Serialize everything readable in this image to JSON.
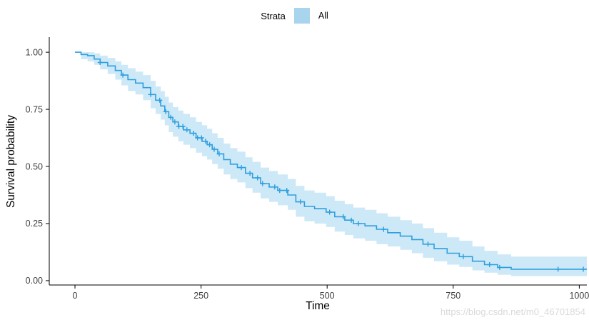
{
  "watermark": "https://blog.csdn.net/m0_46701854",
  "legend": {
    "title": "Strata",
    "items": [
      {
        "label": "All",
        "color": "#a9d4ee"
      }
    ]
  },
  "chart_data": {
    "type": "line",
    "subtype": "kaplan_meier_step",
    "title": "",
    "xlabel": "Time",
    "ylabel": "Survival probability",
    "xlim": [
      0,
      1015
    ],
    "ylim": [
      0,
      1
    ],
    "xticks": [
      0,
      250,
      500,
      750,
      1000
    ],
    "yticks": [
      0,
      0.25,
      0.5,
      0.75,
      1
    ],
    "grid": false,
    "legend_position": "top",
    "background": "#ffffff",
    "axis_color": "#000000",
    "tick_label_color": "#404040",
    "series": [
      {
        "name": "All",
        "color": "#2E9FDF",
        "ci_fill": "#2E9FDF",
        "ci_opacity": 0.24,
        "points": [
          [
            0,
            1.0,
            1.0,
            1.0
          ],
          [
            12,
            0.99,
            0.97,
            1.0
          ],
          [
            25,
            0.985,
            0.96,
            1.0
          ],
          [
            38,
            0.97,
            0.945,
            0.995
          ],
          [
            50,
            0.955,
            0.925,
            0.985
          ],
          [
            65,
            0.94,
            0.905,
            0.975
          ],
          [
            80,
            0.92,
            0.88,
            0.96
          ],
          [
            92,
            0.9,
            0.855,
            0.945
          ],
          [
            105,
            0.88,
            0.83,
            0.93
          ],
          [
            120,
            0.865,
            0.815,
            0.915
          ],
          [
            135,
            0.845,
            0.79,
            0.9
          ],
          [
            150,
            0.815,
            0.755,
            0.875
          ],
          [
            160,
            0.79,
            0.73,
            0.85
          ],
          [
            170,
            0.765,
            0.705,
            0.83
          ],
          [
            178,
            0.74,
            0.68,
            0.805
          ],
          [
            186,
            0.715,
            0.65,
            0.78
          ],
          [
            194,
            0.695,
            0.63,
            0.76
          ],
          [
            205,
            0.675,
            0.61,
            0.745
          ],
          [
            215,
            0.66,
            0.595,
            0.73
          ],
          [
            228,
            0.645,
            0.58,
            0.715
          ],
          [
            240,
            0.625,
            0.56,
            0.695
          ],
          [
            252,
            0.61,
            0.545,
            0.68
          ],
          [
            262,
            0.595,
            0.53,
            0.665
          ],
          [
            272,
            0.575,
            0.51,
            0.645
          ],
          [
            283,
            0.555,
            0.49,
            0.625
          ],
          [
            295,
            0.53,
            0.465,
            0.6
          ],
          [
            308,
            0.51,
            0.445,
            0.58
          ],
          [
            322,
            0.495,
            0.43,
            0.565
          ],
          [
            338,
            0.47,
            0.405,
            0.54
          ],
          [
            352,
            0.45,
            0.385,
            0.52
          ],
          [
            368,
            0.425,
            0.36,
            0.495
          ],
          [
            385,
            0.41,
            0.345,
            0.48
          ],
          [
            402,
            0.395,
            0.33,
            0.465
          ],
          [
            422,
            0.375,
            0.31,
            0.445
          ],
          [
            438,
            0.345,
            0.28,
            0.415
          ],
          [
            455,
            0.325,
            0.26,
            0.395
          ],
          [
            475,
            0.315,
            0.25,
            0.385
          ],
          [
            498,
            0.3,
            0.235,
            0.37
          ],
          [
            515,
            0.28,
            0.215,
            0.35
          ],
          [
            535,
            0.265,
            0.2,
            0.335
          ],
          [
            552,
            0.25,
            0.185,
            0.32
          ],
          [
            575,
            0.24,
            0.175,
            0.31
          ],
          [
            598,
            0.225,
            0.16,
            0.295
          ],
          [
            620,
            0.21,
            0.15,
            0.28
          ],
          [
            645,
            0.195,
            0.135,
            0.265
          ],
          [
            668,
            0.18,
            0.12,
            0.25
          ],
          [
            690,
            0.16,
            0.1,
            0.23
          ],
          [
            712,
            0.14,
            0.085,
            0.21
          ],
          [
            738,
            0.12,
            0.07,
            0.19
          ],
          [
            762,
            0.105,
            0.06,
            0.175
          ],
          [
            788,
            0.085,
            0.045,
            0.15
          ],
          [
            812,
            0.07,
            0.035,
            0.13
          ],
          [
            838,
            0.058,
            0.026,
            0.115
          ],
          [
            865,
            0.05,
            0.02,
            0.105
          ],
          [
            1015,
            0.05,
            0.02,
            0.105
          ]
        ],
        "censor_times": [
          50,
          95,
          150,
          168,
          180,
          190,
          198,
          206,
          214,
          222,
          235,
          243,
          251,
          259,
          267,
          276,
          286,
          330,
          347,
          362,
          372,
          396,
          406,
          420,
          447,
          505,
          532,
          548,
          562,
          612,
          700,
          770,
          822,
          842,
          958,
          1008
        ]
      }
    ]
  }
}
